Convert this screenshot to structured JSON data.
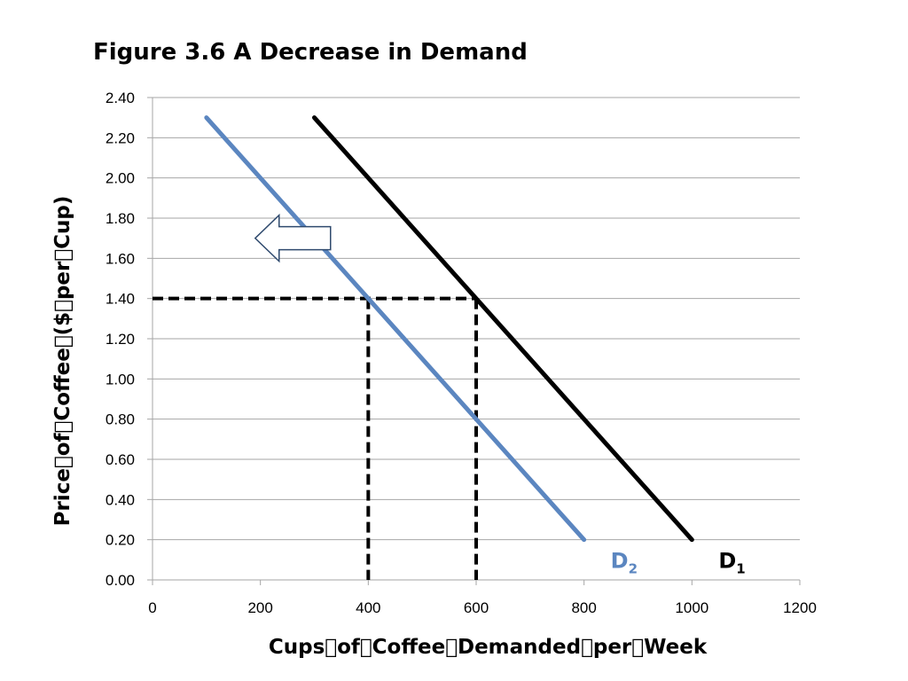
{
  "chart_data": {
    "type": "line",
    "title": "Figure 3.6  A Decrease in Demand",
    "xlabel": "Cups\u0000of\u0000Coffee\u0000Demanded\u0000per\u0000Week",
    "ylabel": "Price\u0000of\u0000Coffee\u0000($\u0000per\u0000Cup)",
    "xlim": [
      0,
      1200
    ],
    "ylim": [
      0,
      2.4
    ],
    "x_ticks": [
      "0",
      "200",
      "400",
      "600",
      "800",
      "1000",
      "1200"
    ],
    "y_ticks": [
      "0.00",
      "0.20",
      "0.40",
      "0.60",
      "0.80",
      "1.00",
      "1.20",
      "1.40",
      "1.60",
      "1.80",
      "2.00",
      "2.20",
      "2.40"
    ],
    "grid": "horizontal",
    "series": [
      {
        "name": "D1",
        "label_main": "D",
        "label_sub": "1",
        "color": "#000000",
        "points": [
          [
            300,
            2.3
          ],
          [
            1000,
            0.2
          ]
        ]
      },
      {
        "name": "D2",
        "label_main": "D",
        "label_sub": "2",
        "color": "#5b86c0",
        "points": [
          [
            100,
            2.3
          ],
          [
            800,
            0.2
          ]
        ]
      }
    ],
    "reference_lines": {
      "price": 1.4,
      "quantities": [
        400,
        600
      ],
      "style": "dashed",
      "color": "#000000"
    },
    "annotations": [
      {
        "type": "arrow",
        "direction": "left",
        "meaning": "demand shifts left"
      }
    ]
  }
}
